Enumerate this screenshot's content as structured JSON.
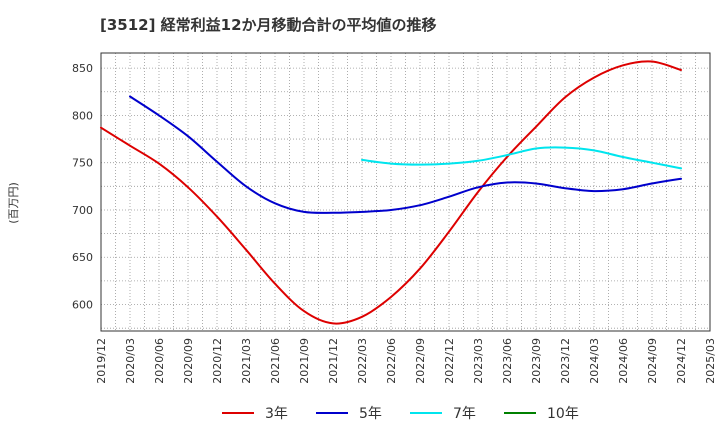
{
  "chart_data": {
    "type": "line",
    "title": "[3512]  経常利益12か月移動合計の平均値の推移",
    "ylabel": "(百万円)",
    "xlabel": "",
    "ylim": [
      572,
      866
    ],
    "yticks": [
      600,
      650,
      700,
      750,
      800,
      850
    ],
    "x_ticks": [
      "2019/12",
      "2020/03",
      "2020/06",
      "2020/09",
      "2020/12",
      "2021/03",
      "2021/06",
      "2021/09",
      "2021/12",
      "2022/03",
      "2022/06",
      "2022/09",
      "2022/12",
      "2023/03",
      "2023/06",
      "2023/09",
      "2023/12",
      "2024/03",
      "2024/06",
      "2024/09",
      "2024/12",
      "2025/03"
    ],
    "grid": true,
    "legend_position": "bottom",
    "series": [
      {
        "name": "3年",
        "color": "#dd0000",
        "x": [
          "2019/12",
          "2020/03",
          "2020/06",
          "2020/09",
          "2020/12",
          "2021/03",
          "2021/06",
          "2021/09",
          "2021/12",
          "2022/03",
          "2022/06",
          "2022/09",
          "2022/12",
          "2023/03",
          "2023/06",
          "2023/09",
          "2023/12",
          "2024/03",
          "2024/06",
          "2024/09",
          "2024/12"
        ],
        "values": [
          787,
          768,
          749,
          724,
          693,
          658,
          622,
          593,
          580,
          587,
          608,
          638,
          677,
          719,
          756,
          788,
          819,
          840,
          853,
          857,
          848
        ]
      },
      {
        "name": "5年",
        "color": "#0000cc",
        "x": [
          "2020/03",
          "2020/06",
          "2020/09",
          "2020/12",
          "2021/03",
          "2021/06",
          "2021/09",
          "2021/12",
          "2022/03",
          "2022/06",
          "2022/09",
          "2022/12",
          "2023/03",
          "2023/06",
          "2023/09",
          "2023/12",
          "2024/03",
          "2024/06",
          "2024/09",
          "2024/12"
        ],
        "values": [
          820,
          800,
          778,
          751,
          725,
          707,
          698,
          697,
          698,
          700,
          705,
          714,
          724,
          729,
          728,
          723,
          720,
          722,
          728,
          733
        ]
      },
      {
        "name": "7年",
        "color": "#00e5ee",
        "x": [
          "2022/03",
          "2022/06",
          "2022/09",
          "2022/12",
          "2023/03",
          "2023/06",
          "2023/09",
          "2023/12",
          "2024/03",
          "2024/06",
          "2024/09",
          "2024/12"
        ],
        "values": [
          753,
          749,
          748,
          749,
          752,
          758,
          765,
          766,
          763,
          756,
          750,
          744
        ]
      },
      {
        "name": "10年",
        "color": "#008000",
        "x": [],
        "values": []
      }
    ]
  }
}
